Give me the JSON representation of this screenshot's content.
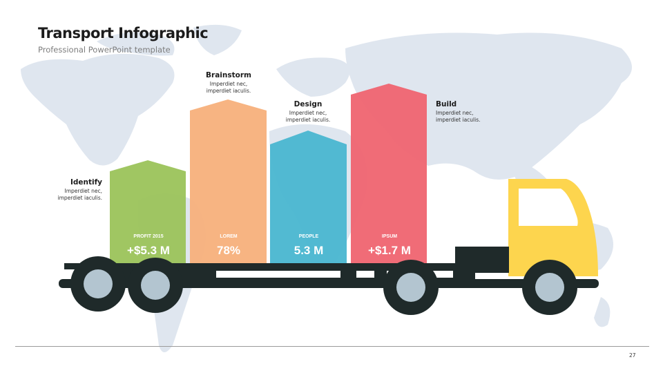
{
  "header": {
    "title": "Transport Infographic",
    "subtitle": "Professional PowerPoint template"
  },
  "colors": {
    "green": "#9bc35a",
    "orange": "#f7b07b",
    "blue": "#49b6d0",
    "red": "#ef6470",
    "truck_yellow": "#fdd54e",
    "chassis": "#1f2a2a",
    "map": "#dde5ef"
  },
  "chart_data": {
    "type": "bar",
    "categories": [
      "PROFIT 2015",
      "LOREM",
      "PEOPLE",
      "IPSUM"
    ],
    "value_labels": [
      "+$5.3 M",
      "78%",
      "5.3 M",
      "+$1.7 M"
    ],
    "steps": [
      {
        "title": "Identify",
        "desc1": "Imperdiet nec,",
        "desc2": "imperdiet iaculis."
      },
      {
        "title": "Brainstorm",
        "desc1": "Imperdiet nec,",
        "desc2": "imperdiet iaculis."
      },
      {
        "title": "Design",
        "desc1": "Imperdiet nec,",
        "desc2": "imperdiet iaculis."
      },
      {
        "title": "Build",
        "desc1": "Imperdiet nec,",
        "desc2": "imperdiet iaculis."
      }
    ]
  },
  "footer": {
    "page_number": "27"
  }
}
